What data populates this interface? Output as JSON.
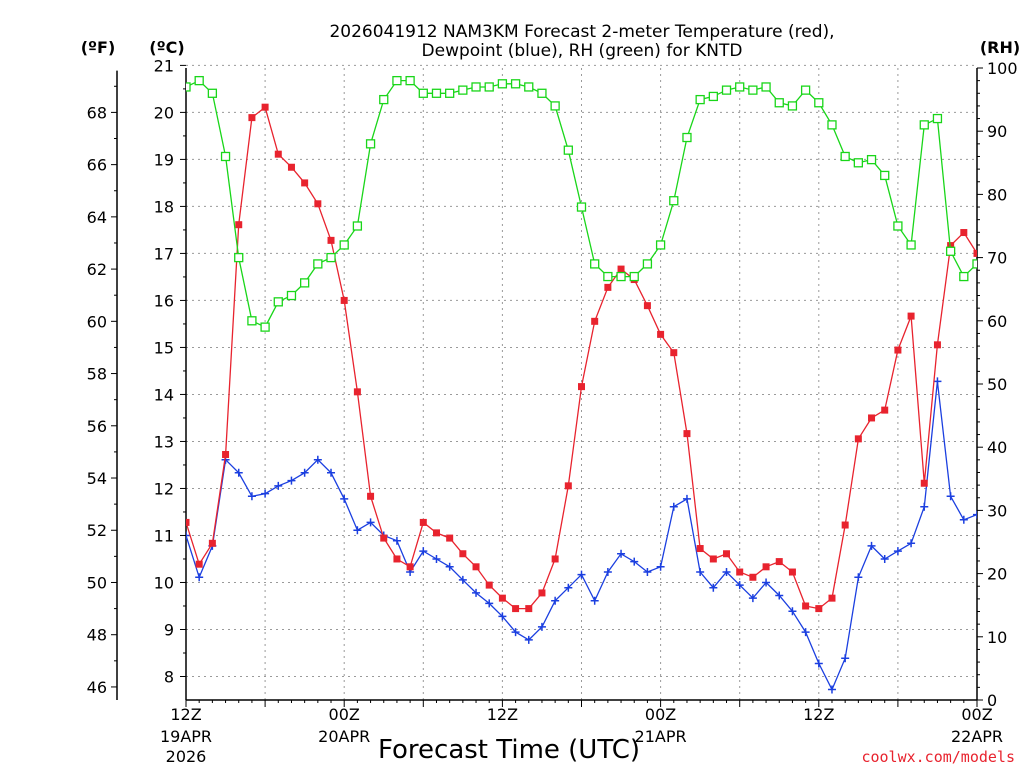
{
  "chart_data": {
    "type": "line",
    "title_line1": "2026041912 NAM3KM Forecast 2-meter Temperature (red),",
    "title_line2": "Dewpoint (blue), RH (green) for KNTD",
    "xlabel": "Forecast Time (UTC)",
    "left_axis_f_label": "(ºF)",
    "left_axis_c_label": "(ºC)",
    "right_axis_label": "(RH)",
    "watermark": "coolwx.com/models",
    "x_ticks": [
      {
        "h": 0,
        "l1": "12Z",
        "l2": "19APR",
        "l3": "2026"
      },
      {
        "h": 12,
        "l1": "00Z",
        "l2": "20APR",
        "l3": ""
      },
      {
        "h": 24,
        "l1": "12Z",
        "l2": "",
        "l3": ""
      },
      {
        "h": 36,
        "l1": "00Z",
        "l2": "21APR",
        "l3": ""
      },
      {
        "h": 48,
        "l1": "12Z",
        "l2": "",
        "l3": ""
      },
      {
        "h": 60,
        "l1": "00Z",
        "l2": "22APR",
        "l3": ""
      }
    ],
    "xlim_hours": [
      0,
      60
    ],
    "ylim_f": [
      45.5,
      69.7
    ],
    "ylim_rh": [
      0,
      100
    ],
    "f_ticks": [
      46,
      48,
      50,
      52,
      54,
      56,
      58,
      60,
      62,
      64,
      66,
      68
    ],
    "c_ticks": [
      8,
      9,
      10,
      11,
      12,
      13,
      14,
      15,
      16,
      17,
      18,
      19,
      20,
      21
    ],
    "rh_ticks": [
      0,
      10,
      20,
      30,
      40,
      50,
      60,
      70,
      80,
      90,
      100
    ],
    "colors": {
      "temperature": "#e8232e",
      "dewpoint": "#1b3fe0",
      "rh": "#19d619",
      "grid": "#9a9a9a"
    },
    "series": [
      {
        "name": "Temperature",
        "unit": "F",
        "x": [
          0,
          1,
          2,
          3,
          4,
          5,
          6,
          7,
          8,
          9,
          10,
          11,
          12,
          13,
          14,
          15,
          16,
          17,
          18,
          19,
          20,
          21,
          22,
          23,
          24,
          25,
          26,
          27,
          28,
          29,
          30,
          31,
          32,
          33,
          34,
          35,
          36,
          37,
          38,
          39,
          40,
          41,
          42,
          43,
          44,
          45,
          46,
          47,
          48,
          49,
          50,
          51,
          52,
          53,
          54,
          55,
          56,
          57,
          58,
          59,
          60
        ],
        "values": [
          52.3,
          50.7,
          51.5,
          54.9,
          63.7,
          67.8,
          68.2,
          66.4,
          65.9,
          65.3,
          64.5,
          63.1,
          60.8,
          57.3,
          53.3,
          51.7,
          50.9,
          50.6,
          52.3,
          51.9,
          51.7,
          51.1,
          50.6,
          49.9,
          49.4,
          49.0,
          49.0,
          49.6,
          50.9,
          53.7,
          57.5,
          60.0,
          61.3,
          62.0,
          61.6,
          60.6,
          59.5,
          58.8,
          55.7,
          51.3,
          50.9,
          51.1,
          50.4,
          50.2,
          50.6,
          50.8,
          50.4,
          49.1,
          49.0,
          49.4,
          52.2,
          55.5,
          56.3,
          56.6,
          58.9,
          60.2,
          53.8,
          59.1,
          62.9,
          63.4,
          62.6
        ]
      },
      {
        "name": "Dewpoint",
        "unit": "F",
        "x": [
          0,
          1,
          2,
          3,
          4,
          5,
          6,
          7,
          8,
          9,
          10,
          11,
          12,
          13,
          14,
          15,
          16,
          17,
          18,
          19,
          20,
          21,
          22,
          23,
          24,
          25,
          26,
          27,
          28,
          29,
          30,
          31,
          32,
          33,
          34,
          35,
          36,
          37,
          38,
          39,
          40,
          41,
          42,
          43,
          44,
          45,
          46,
          47,
          48,
          49,
          50,
          51,
          52,
          53,
          54,
          55,
          56,
          57,
          58,
          59,
          60
        ],
        "values": [
          51.8,
          50.2,
          51.4,
          54.7,
          54.2,
          53.3,
          53.4,
          53.7,
          53.9,
          54.2,
          54.7,
          54.2,
          53.2,
          52.0,
          52.3,
          51.8,
          51.6,
          50.4,
          51.2,
          50.9,
          50.6,
          50.1,
          49.6,
          49.2,
          48.7,
          48.1,
          47.8,
          48.3,
          49.3,
          49.8,
          50.3,
          49.3,
          50.4,
          51.1,
          50.8,
          50.4,
          50.6,
          52.9,
          53.2,
          50.4,
          49.8,
          50.4,
          49.9,
          49.4,
          50.0,
          49.5,
          48.9,
          48.1,
          46.9,
          45.9,
          47.1,
          50.2,
          51.4,
          50.9,
          51.2,
          51.5,
          52.9,
          57.7,
          53.3,
          52.4,
          52.6
        ]
      },
      {
        "name": "RH",
        "unit": "%",
        "x": [
          0,
          1,
          2,
          3,
          4,
          5,
          6,
          7,
          8,
          9,
          10,
          11,
          12,
          13,
          14,
          15,
          16,
          17,
          18,
          19,
          20,
          21,
          22,
          23,
          24,
          25,
          26,
          27,
          28,
          29,
          30,
          31,
          32,
          33,
          34,
          35,
          36,
          37,
          38,
          39,
          40,
          41,
          42,
          43,
          44,
          45,
          46,
          47,
          48,
          49,
          50,
          51,
          52,
          53,
          54,
          55,
          56,
          57,
          58,
          59,
          60
        ],
        "values": [
          97,
          98,
          96,
          86,
          70,
          60,
          59,
          63,
          64,
          66,
          69,
          70,
          72,
          75,
          88,
          95,
          98,
          98,
          96,
          96,
          96,
          96.5,
          97,
          97,
          97.5,
          97.5,
          97,
          96,
          94,
          87,
          78,
          69,
          67,
          67,
          67,
          69,
          72,
          79,
          89,
          95,
          95.5,
          96.5,
          97,
          96.5,
          97,
          94.5,
          94,
          96.5,
          94.5,
          91,
          86,
          85,
          85.5,
          83,
          75,
          72,
          91,
          92,
          71,
          67,
          69
        ]
      }
    ]
  }
}
